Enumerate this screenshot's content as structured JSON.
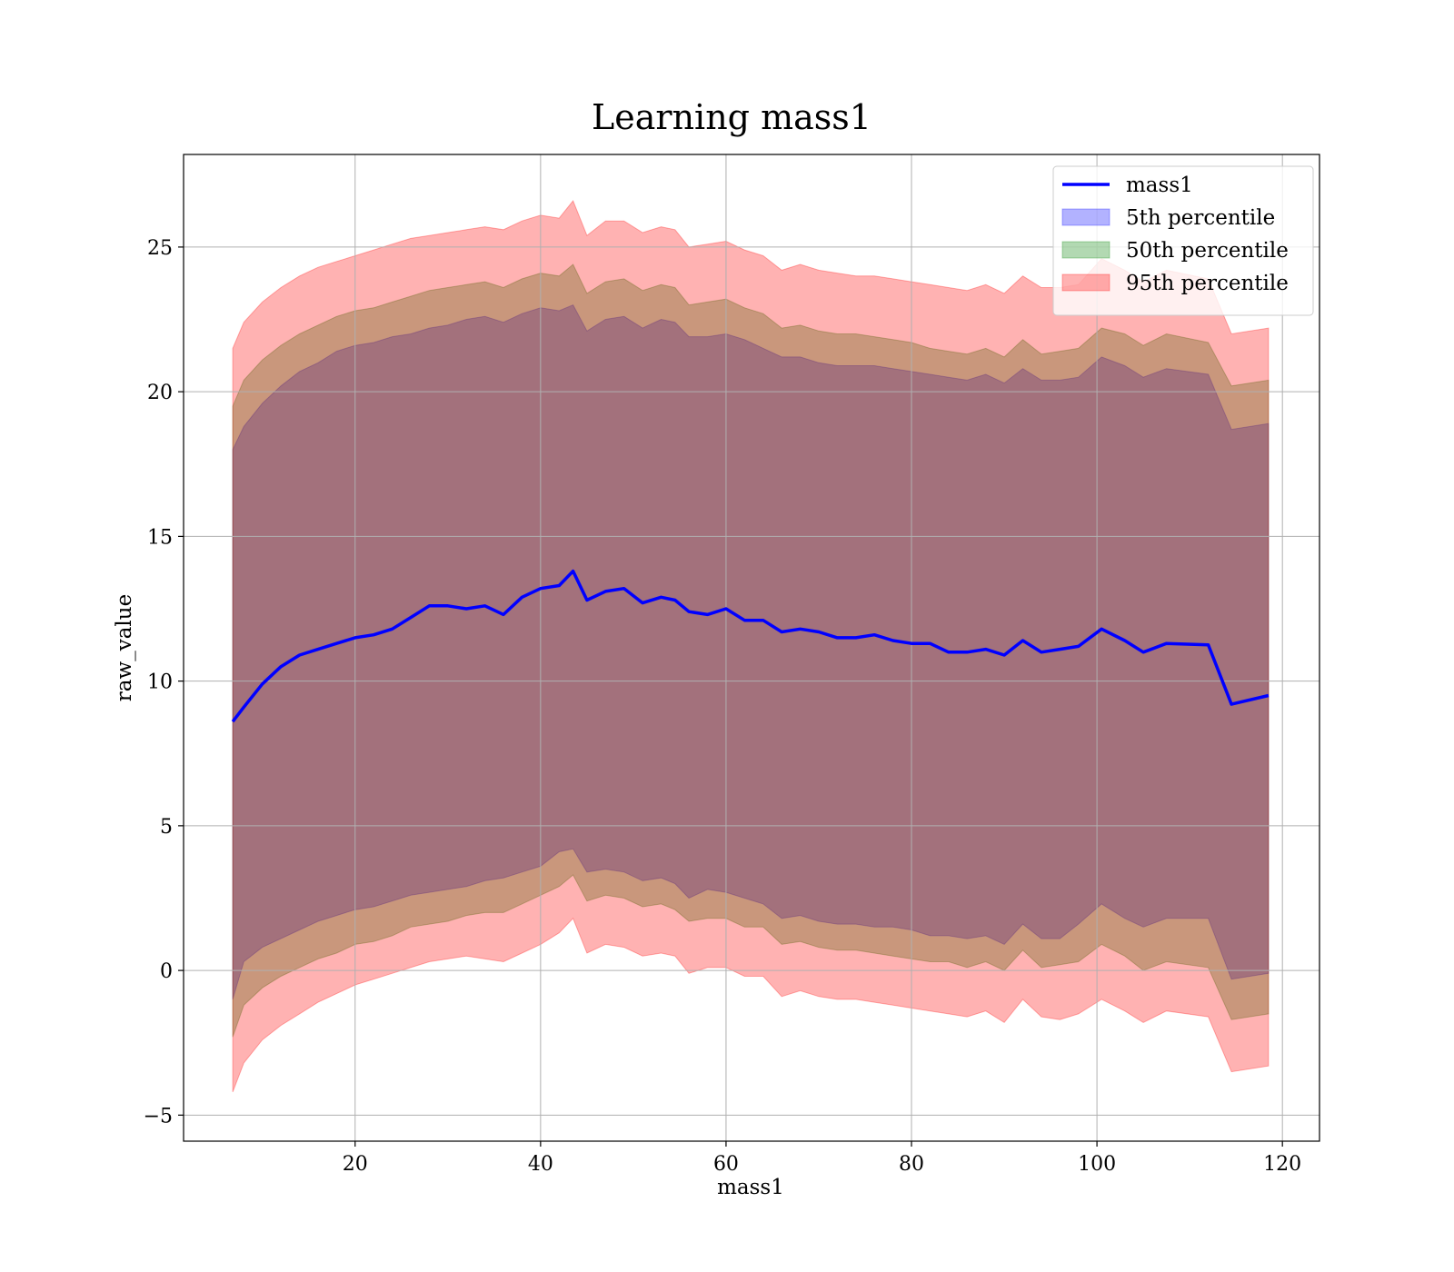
{
  "chart_data": {
    "type": "line",
    "title": "Learning mass1",
    "xlabel": "mass1",
    "ylabel": "raw_value",
    "xlim": [
      1.5,
      124
    ],
    "ylim": [
      -5.9,
      28.2
    ],
    "xticks": [
      20,
      40,
      60,
      80,
      100,
      120
    ],
    "yticks": [
      -5,
      0,
      5,
      10,
      15,
      20,
      25
    ],
    "xtick_labels": [
      "20",
      "40",
      "60",
      "80",
      "100",
      "120"
    ],
    "ytick_labels": [
      "−5",
      "0",
      "5",
      "10",
      "15",
      "20",
      "25"
    ],
    "grid": true,
    "legend_position": "top-right",
    "legend": [
      {
        "label": "mass1",
        "kind": "line",
        "color": "#0000ff"
      },
      {
        "label": "5th percentile",
        "kind": "band",
        "color": "#0000ff"
      },
      {
        "label": "50th percentile",
        "kind": "band",
        "color": "#008000"
      },
      {
        "label": "95th percentile",
        "kind": "band",
        "color": "#ff0000"
      }
    ],
    "x": [
      6.8,
      8,
      10,
      12,
      14,
      16,
      18,
      20,
      22,
      24,
      26,
      28,
      30,
      32,
      34,
      36,
      38,
      40,
      42,
      43.5,
      45,
      47,
      49,
      51,
      53,
      54.5,
      56,
      58,
      60,
      62,
      64,
      66,
      68,
      70,
      72,
      74,
      76,
      78,
      80,
      82,
      84,
      86,
      88,
      90,
      92,
      94,
      96,
      98,
      100.5,
      103,
      105,
      107.5,
      112,
      114.5,
      118.5
    ],
    "series": [
      {
        "name": "mass1",
        "color": "#0000ff",
        "values": [
          8.6,
          9.1,
          9.9,
          10.5,
          10.9,
          11.1,
          11.3,
          11.5,
          11.6,
          11.8,
          12.2,
          12.6,
          12.6,
          12.5,
          12.6,
          12.3,
          12.9,
          13.2,
          13.3,
          13.8,
          12.8,
          13.1,
          13.2,
          12.7,
          12.9,
          12.8,
          12.4,
          12.3,
          12.5,
          12.1,
          12.1,
          11.7,
          11.8,
          11.7,
          11.5,
          11.5,
          11.6,
          11.4,
          11.3,
          11.3,
          11.0,
          11.0,
          11.1,
          10.9,
          11.4,
          11.0,
          11.1,
          11.2,
          11.8,
          11.4,
          11.0,
          11.3,
          11.25,
          9.2,
          9.5
        ]
      },
      {
        "name": "5th percentile",
        "color": "#0000ff",
        "lower": [
          -1.0,
          0.3,
          0.8,
          1.1,
          1.4,
          1.7,
          1.9,
          2.1,
          2.2,
          2.4,
          2.6,
          2.7,
          2.8,
          2.9,
          3.1,
          3.2,
          3.4,
          3.6,
          4.1,
          4.2,
          3.4,
          3.5,
          3.4,
          3.1,
          3.2,
          3.0,
          2.5,
          2.8,
          2.7,
          2.5,
          2.3,
          1.8,
          1.9,
          1.7,
          1.6,
          1.6,
          1.5,
          1.5,
          1.4,
          1.2,
          1.2,
          1.1,
          1.2,
          0.9,
          1.6,
          1.1,
          1.1,
          1.6,
          2.3,
          1.8,
          1.5,
          1.8,
          1.8,
          -0.3,
          -0.1
        ],
        "upper": [
          18.0,
          18.8,
          19.6,
          20.2,
          20.7,
          21.0,
          21.4,
          21.6,
          21.7,
          21.9,
          22.0,
          22.2,
          22.3,
          22.5,
          22.6,
          22.4,
          22.7,
          22.9,
          22.8,
          23.0,
          22.1,
          22.5,
          22.6,
          22.2,
          22.5,
          22.4,
          21.9,
          21.9,
          22.0,
          21.8,
          21.5,
          21.2,
          21.2,
          21.0,
          20.9,
          20.9,
          20.9,
          20.8,
          20.7,
          20.6,
          20.5,
          20.4,
          20.6,
          20.3,
          20.8,
          20.4,
          20.4,
          20.5,
          21.2,
          20.9,
          20.5,
          20.8,
          20.6,
          18.7,
          18.9
        ]
      },
      {
        "name": "50th percentile",
        "color": "#008000",
        "lower": [
          -2.3,
          -1.2,
          -0.6,
          -0.2,
          0.1,
          0.4,
          0.6,
          0.9,
          1.0,
          1.2,
          1.5,
          1.6,
          1.7,
          1.9,
          2.0,
          2.0,
          2.3,
          2.6,
          2.9,
          3.3,
          2.4,
          2.6,
          2.5,
          2.2,
          2.3,
          2.1,
          1.7,
          1.8,
          1.8,
          1.5,
          1.5,
          0.9,
          1.0,
          0.8,
          0.7,
          0.7,
          0.6,
          0.5,
          0.4,
          0.3,
          0.3,
          0.1,
          0.3,
          0.0,
          0.7,
          0.1,
          0.2,
          0.3,
          0.9,
          0.5,
          0.0,
          0.3,
          0.1,
          -1.7,
          -1.5
        ],
        "upper": [
          19.5,
          20.4,
          21.1,
          21.6,
          22.0,
          22.3,
          22.6,
          22.8,
          22.9,
          23.1,
          23.3,
          23.5,
          23.6,
          23.7,
          23.8,
          23.6,
          23.9,
          24.1,
          24.0,
          24.4,
          23.4,
          23.8,
          23.9,
          23.5,
          23.7,
          23.6,
          23.0,
          23.1,
          23.2,
          22.9,
          22.7,
          22.2,
          22.3,
          22.1,
          22.0,
          22.0,
          21.9,
          21.8,
          21.7,
          21.5,
          21.4,
          21.3,
          21.5,
          21.2,
          21.8,
          21.3,
          21.4,
          21.5,
          22.2,
          22.0,
          21.6,
          22.0,
          21.7,
          20.2,
          20.4
        ]
      },
      {
        "name": "95th percentile",
        "color": "#ff0000",
        "lower": [
          -4.2,
          -3.2,
          -2.4,
          -1.9,
          -1.5,
          -1.1,
          -0.8,
          -0.5,
          -0.3,
          -0.1,
          0.1,
          0.3,
          0.4,
          0.5,
          0.4,
          0.3,
          0.6,
          0.9,
          1.3,
          1.8,
          0.6,
          0.9,
          0.8,
          0.5,
          0.6,
          0.5,
          -0.1,
          0.1,
          0.1,
          -0.2,
          -0.2,
          -0.9,
          -0.7,
          -0.9,
          -1.0,
          -1.0,
          -1.1,
          -1.2,
          -1.3,
          -1.4,
          -1.5,
          -1.6,
          -1.4,
          -1.8,
          -1.0,
          -1.6,
          -1.7,
          -1.5,
          -1.0,
          -1.4,
          -1.8,
          -1.4,
          -1.6,
          -3.5,
          -3.3
        ],
        "upper": [
          21.5,
          22.4,
          23.1,
          23.6,
          24.0,
          24.3,
          24.5,
          24.7,
          24.9,
          25.1,
          25.3,
          25.4,
          25.5,
          25.6,
          25.7,
          25.6,
          25.9,
          26.1,
          26.0,
          26.6,
          25.4,
          25.9,
          25.9,
          25.5,
          25.7,
          25.6,
          25.0,
          25.1,
          25.2,
          24.9,
          24.7,
          24.2,
          24.4,
          24.2,
          24.1,
          24.0,
          24.0,
          23.9,
          23.8,
          23.7,
          23.6,
          23.5,
          23.7,
          23.4,
          24.0,
          23.6,
          23.6,
          23.7,
          24.6,
          24.2,
          23.8,
          24.2,
          23.9,
          22.0,
          22.2
        ]
      }
    ]
  }
}
